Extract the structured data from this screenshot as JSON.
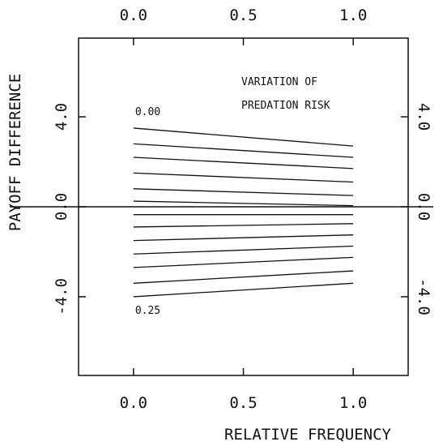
{
  "chart_data": {
    "type": "line",
    "xlabel": "RELATIVE FREQUENCY",
    "ylabel": "PAYOFF DIFFERENCE",
    "xlim": [
      -0.25,
      1.25
    ],
    "ylim": [
      -7.5,
      7.5
    ],
    "x_ticks": [
      0.0,
      0.5,
      1.0
    ],
    "x_tick_labels": [
      "0.0",
      "0.5",
      "1.0"
    ],
    "y_ticks": [
      -4.0,
      0.0,
      4.0
    ],
    "y_tick_labels": [
      "-4.0",
      "0.0",
      "4.0"
    ],
    "annotation": [
      "VARIATION OF",
      "PREDATION RISK"
    ],
    "first_label": "0.00",
    "last_label": "0.25",
    "x": [
      0.0,
      1.0
    ],
    "series": [
      {
        "values": [
          3.5,
          2.7
        ]
      },
      {
        "values": [
          2.8,
          2.2
        ]
      },
      {
        "values": [
          2.2,
          1.7
        ]
      },
      {
        "values": [
          1.5,
          1.1
        ]
      },
      {
        "values": [
          0.8,
          0.5
        ]
      },
      {
        "values": [
          0.25,
          0.05
        ]
      },
      {
        "values": [
          -0.35,
          -0.35
        ]
      },
      {
        "values": [
          -0.9,
          -0.75
        ]
      },
      {
        "values": [
          -1.5,
          -1.25
        ]
      },
      {
        "values": [
          -2.1,
          -1.75
        ]
      },
      {
        "values": [
          -2.7,
          -2.25
        ]
      },
      {
        "values": [
          -3.4,
          -2.85
        ]
      },
      {
        "values": [
          -4.0,
          -3.4
        ]
      }
    ],
    "zero_line": 0.0,
    "grid": false
  }
}
